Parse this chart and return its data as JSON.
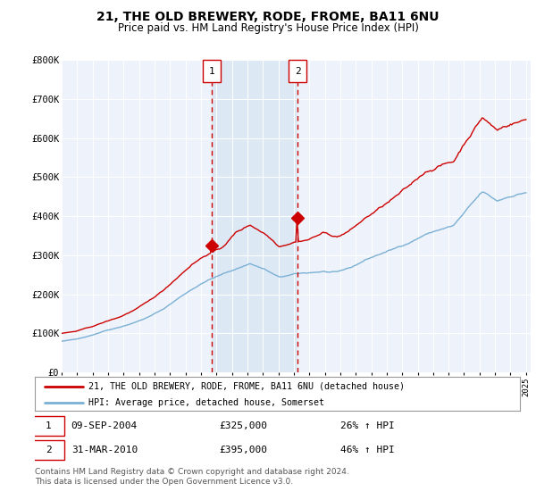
{
  "title": "21, THE OLD BREWERY, RODE, FROME, BA11 6NU",
  "subtitle": "Price paid vs. HM Land Registry's House Price Index (HPI)",
  "ylim": [
    0,
    800000
  ],
  "yticks": [
    0,
    100000,
    200000,
    300000,
    400000,
    500000,
    600000,
    700000,
    800000
  ],
  "ytick_labels": [
    "£0",
    "£100K",
    "£200K",
    "£300K",
    "£400K",
    "£500K",
    "£600K",
    "£700K",
    "£800K"
  ],
  "purchase1_year": 2004.69,
  "purchase1_price": 325000,
  "purchase2_year": 2010.25,
  "purchase2_price": 395000,
  "purchase1_date": "09-SEP-2004",
  "purchase1_hpi": "26% ↑ HPI",
  "purchase2_date": "31-MAR-2010",
  "purchase2_hpi": "46% ↑ HPI",
  "line1_color": "#cc0000",
  "line2_color": "#7ab0d4",
  "vline_color": "#cc0000",
  "shade_color": "#dde8f5",
  "legend_label1": "21, THE OLD BREWERY, RODE, FROME, BA11 6NU (detached house)",
  "legend_label2": "HPI: Average price, detached house, Somerset",
  "footnote1": "Contains HM Land Registry data © Crown copyright and database right 2024.",
  "footnote2": "This data is licensed under the Open Government Licence v3.0.",
  "background_color": "#ffffff",
  "plot_bg_color": "#eef2fa"
}
